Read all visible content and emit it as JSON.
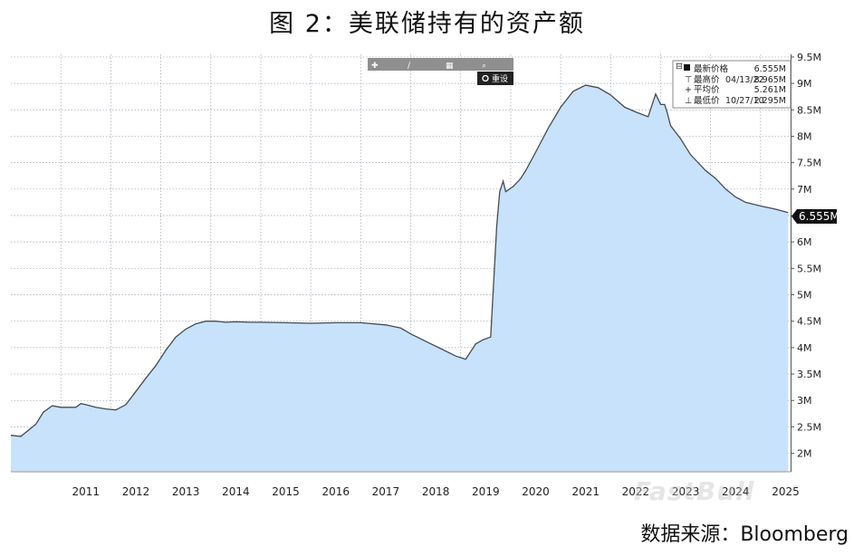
{
  "title": "图 2：美联储持有的资产额",
  "source": "数据来源：Bloomberg",
  "watermark": "FastBull",
  "toolbar": {
    "reset_label": "重设"
  },
  "colors": {
    "fill": "#c8e2fb",
    "line": "#4a4a4a",
    "grid": "#9aa7b8",
    "label_bg": "#111111"
  },
  "legend": {
    "latest": {
      "label": "最新价格",
      "date": "",
      "value": "6.555M"
    },
    "high": {
      "label": "最高价",
      "date": "04/13/22",
      "value": "8.965M"
    },
    "avg": {
      "label": "平均价",
      "date": "",
      "value": "5.261M"
    },
    "low": {
      "label": "最低价",
      "date": "10/27/10",
      "value": "2.295M"
    }
  },
  "last_value_label": "6.555M",
  "chart_data": {
    "type": "area",
    "x_unit": "year",
    "x_ticks": [
      "2011",
      "2012",
      "2013",
      "2014",
      "2015",
      "2016",
      "2017",
      "2018",
      "2019",
      "2020",
      "2021",
      "2022",
      "2023",
      "2024",
      "2025"
    ],
    "y_ticks": [
      "2M",
      "2.5M",
      "3M",
      "3.5M",
      "4M",
      "4.5M",
      "5M",
      "5.5M",
      "6M",
      "6.5M",
      "7M",
      "7.5M",
      "8M",
      "8.5M",
      "9M",
      "9.5M"
    ],
    "ylim": [
      1.65,
      9.55
    ],
    "xlim": [
      2010.0,
      2025.6
    ],
    "grid": true,
    "series": [
      {
        "x": [
          2010.0,
          2010.2,
          2010.5,
          2010.65,
          2010.83,
          2011.0,
          2011.3,
          2011.4,
          2011.5,
          2011.7,
          2011.9,
          2012.1,
          2012.3,
          2012.5,
          2012.7,
          2012.9,
          2013.1,
          2013.3,
          2013.5,
          2013.7,
          2013.9,
          2014.1,
          2014.3,
          2014.5,
          2014.8,
          2015.0,
          2015.5,
          2016.0,
          2016.5,
          2017.0,
          2017.5,
          2017.8,
          2018.0,
          2018.3,
          2018.6,
          2018.9,
          2019.1,
          2019.3,
          2019.45,
          2019.6,
          2019.72,
          2019.78,
          2019.85,
          2019.9,
          2020.05,
          2020.2,
          2020.3,
          2020.5,
          2020.75,
          2021.0,
          2021.25,
          2021.5,
          2021.75,
          2022.0,
          2022.28,
          2022.5,
          2022.75,
          2022.9,
          2023.0,
          2023.08,
          2023.13,
          2023.2,
          2023.4,
          2023.6,
          2023.9,
          2024.1,
          2024.3,
          2024.5,
          2024.7,
          2025.0,
          2025.3,
          2025.55
        ],
        "y": [
          2.34,
          2.32,
          2.55,
          2.78,
          2.9,
          2.87,
          2.87,
          2.94,
          2.92,
          2.87,
          2.84,
          2.82,
          2.92,
          3.17,
          3.42,
          3.66,
          3.95,
          4.2,
          4.35,
          4.45,
          4.5,
          4.5,
          4.48,
          4.49,
          4.48,
          4.48,
          4.47,
          4.46,
          4.47,
          4.47,
          4.43,
          4.37,
          4.26,
          4.12,
          3.98,
          3.84,
          3.78,
          4.07,
          4.15,
          4.2,
          6.3,
          6.95,
          7.15,
          6.95,
          7.05,
          7.2,
          7.35,
          7.7,
          8.15,
          8.55,
          8.85,
          8.965,
          8.92,
          8.78,
          8.55,
          8.46,
          8.37,
          8.8,
          8.6,
          8.6,
          8.45,
          8.2,
          7.95,
          7.65,
          7.35,
          7.2,
          7.0,
          6.85,
          6.75,
          6.68,
          6.62,
          6.555
        ]
      }
    ]
  }
}
